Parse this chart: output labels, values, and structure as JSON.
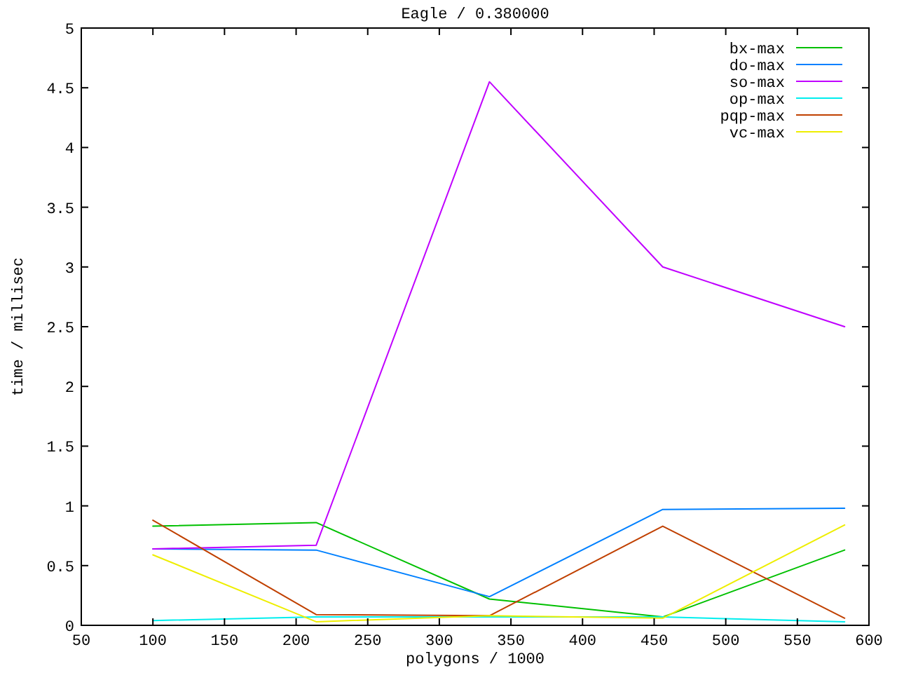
{
  "chart_data": {
    "type": "line",
    "title": "Eagle / 0.380000",
    "xlabel": "polygons / 1000",
    "ylabel": "time / millisec",
    "x": [
      100,
      214,
      335,
      456,
      583
    ],
    "series": [
      {
        "name": "bx-max",
        "color": "#00c000",
        "values": [
          0.83,
          0.86,
          0.22,
          0.07,
          0.63
        ]
      },
      {
        "name": "do-max",
        "color": "#0080ff",
        "values": [
          0.64,
          0.63,
          0.24,
          0.97,
          0.98
        ]
      },
      {
        "name": "so-max",
        "color": "#c000ff",
        "values": [
          0.64,
          0.67,
          4.55,
          3.0,
          2.5
        ]
      },
      {
        "name": "op-max",
        "color": "#00eeee",
        "values": [
          0.04,
          0.07,
          0.07,
          0.07,
          0.03
        ]
      },
      {
        "name": "pqp-max",
        "color": "#c04000",
        "values": [
          0.88,
          0.09,
          0.08,
          0.83,
          0.06
        ]
      },
      {
        "name": "vc-max",
        "color": "#eeee00",
        "values": [
          0.59,
          0.03,
          0.08,
          0.06,
          0.84
        ]
      }
    ],
    "xlim": [
      50,
      600
    ],
    "xticks": [
      50,
      100,
      150,
      200,
      250,
      300,
      350,
      400,
      450,
      500,
      550,
      600
    ],
    "ylim": [
      0,
      5
    ],
    "yticks": [
      0,
      0.5,
      1,
      1.5,
      2,
      2.5,
      3,
      3.5,
      4,
      4.5,
      5
    ],
    "grid": false,
    "legend": "top right",
    "marker": "none",
    "line_style": "solid"
  }
}
